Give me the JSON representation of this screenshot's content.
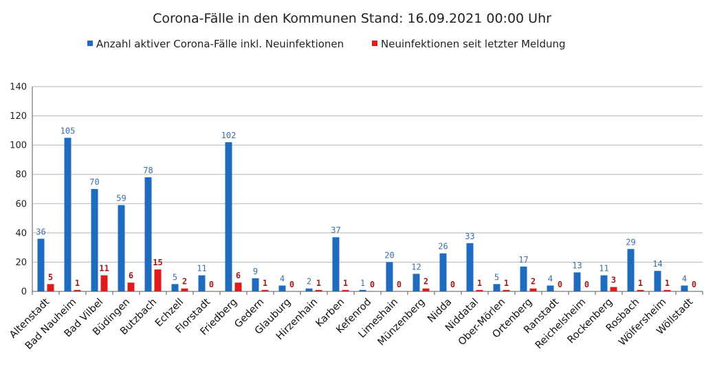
{
  "chart_data": {
    "type": "bar",
    "title": "Corona-Fälle in den Kommunen Stand: 16.09.2021 00:00 Uhr",
    "categories": [
      "Altenstadt",
      "Bad Nauheim",
      "Bad Vilbel",
      "Büdingen",
      "Butzbach",
      "Echzell",
      "Florstadt",
      "Friedberg",
      "Gedern",
      "Glauburg",
      "Hirzenhain",
      "Karben",
      "Kefenrod",
      "Limeshain",
      "Münzenberg",
      "Nidda",
      "Niddatal",
      "Ober-Mörlen",
      "Ortenberg",
      "Ranstadt",
      "Reichelsheim",
      "Rockenberg",
      "Rosbach",
      "Wölfersheim",
      "Wöllstadt"
    ],
    "series": [
      {
        "name": "Anzahl aktiver Corona-Fälle inkl. Neuinfektionen",
        "color": "#1f6bbf",
        "values": [
          36,
          105,
          70,
          59,
          78,
          5,
          11,
          102,
          9,
          4,
          2,
          37,
          1,
          20,
          12,
          26,
          33,
          5,
          17,
          4,
          13,
          11,
          29,
          14,
          4
        ]
      },
      {
        "name": "Neuinfektionen seit letzter Meldung",
        "color": "#e01b1b",
        "values": [
          5,
          1,
          11,
          6,
          15,
          2,
          0,
          6,
          1,
          0,
          1,
          1,
          0,
          0,
          2,
          0,
          1,
          1,
          2,
          0,
          0,
          3,
          1,
          1,
          0
        ]
      }
    ],
    "yticks": [
      0,
      20,
      40,
      60,
      80,
      100,
      120,
      140
    ],
    "ylim": [
      0,
      140
    ],
    "xlabel": "",
    "ylabel": "",
    "grid": true,
    "legend_position": "top"
  }
}
